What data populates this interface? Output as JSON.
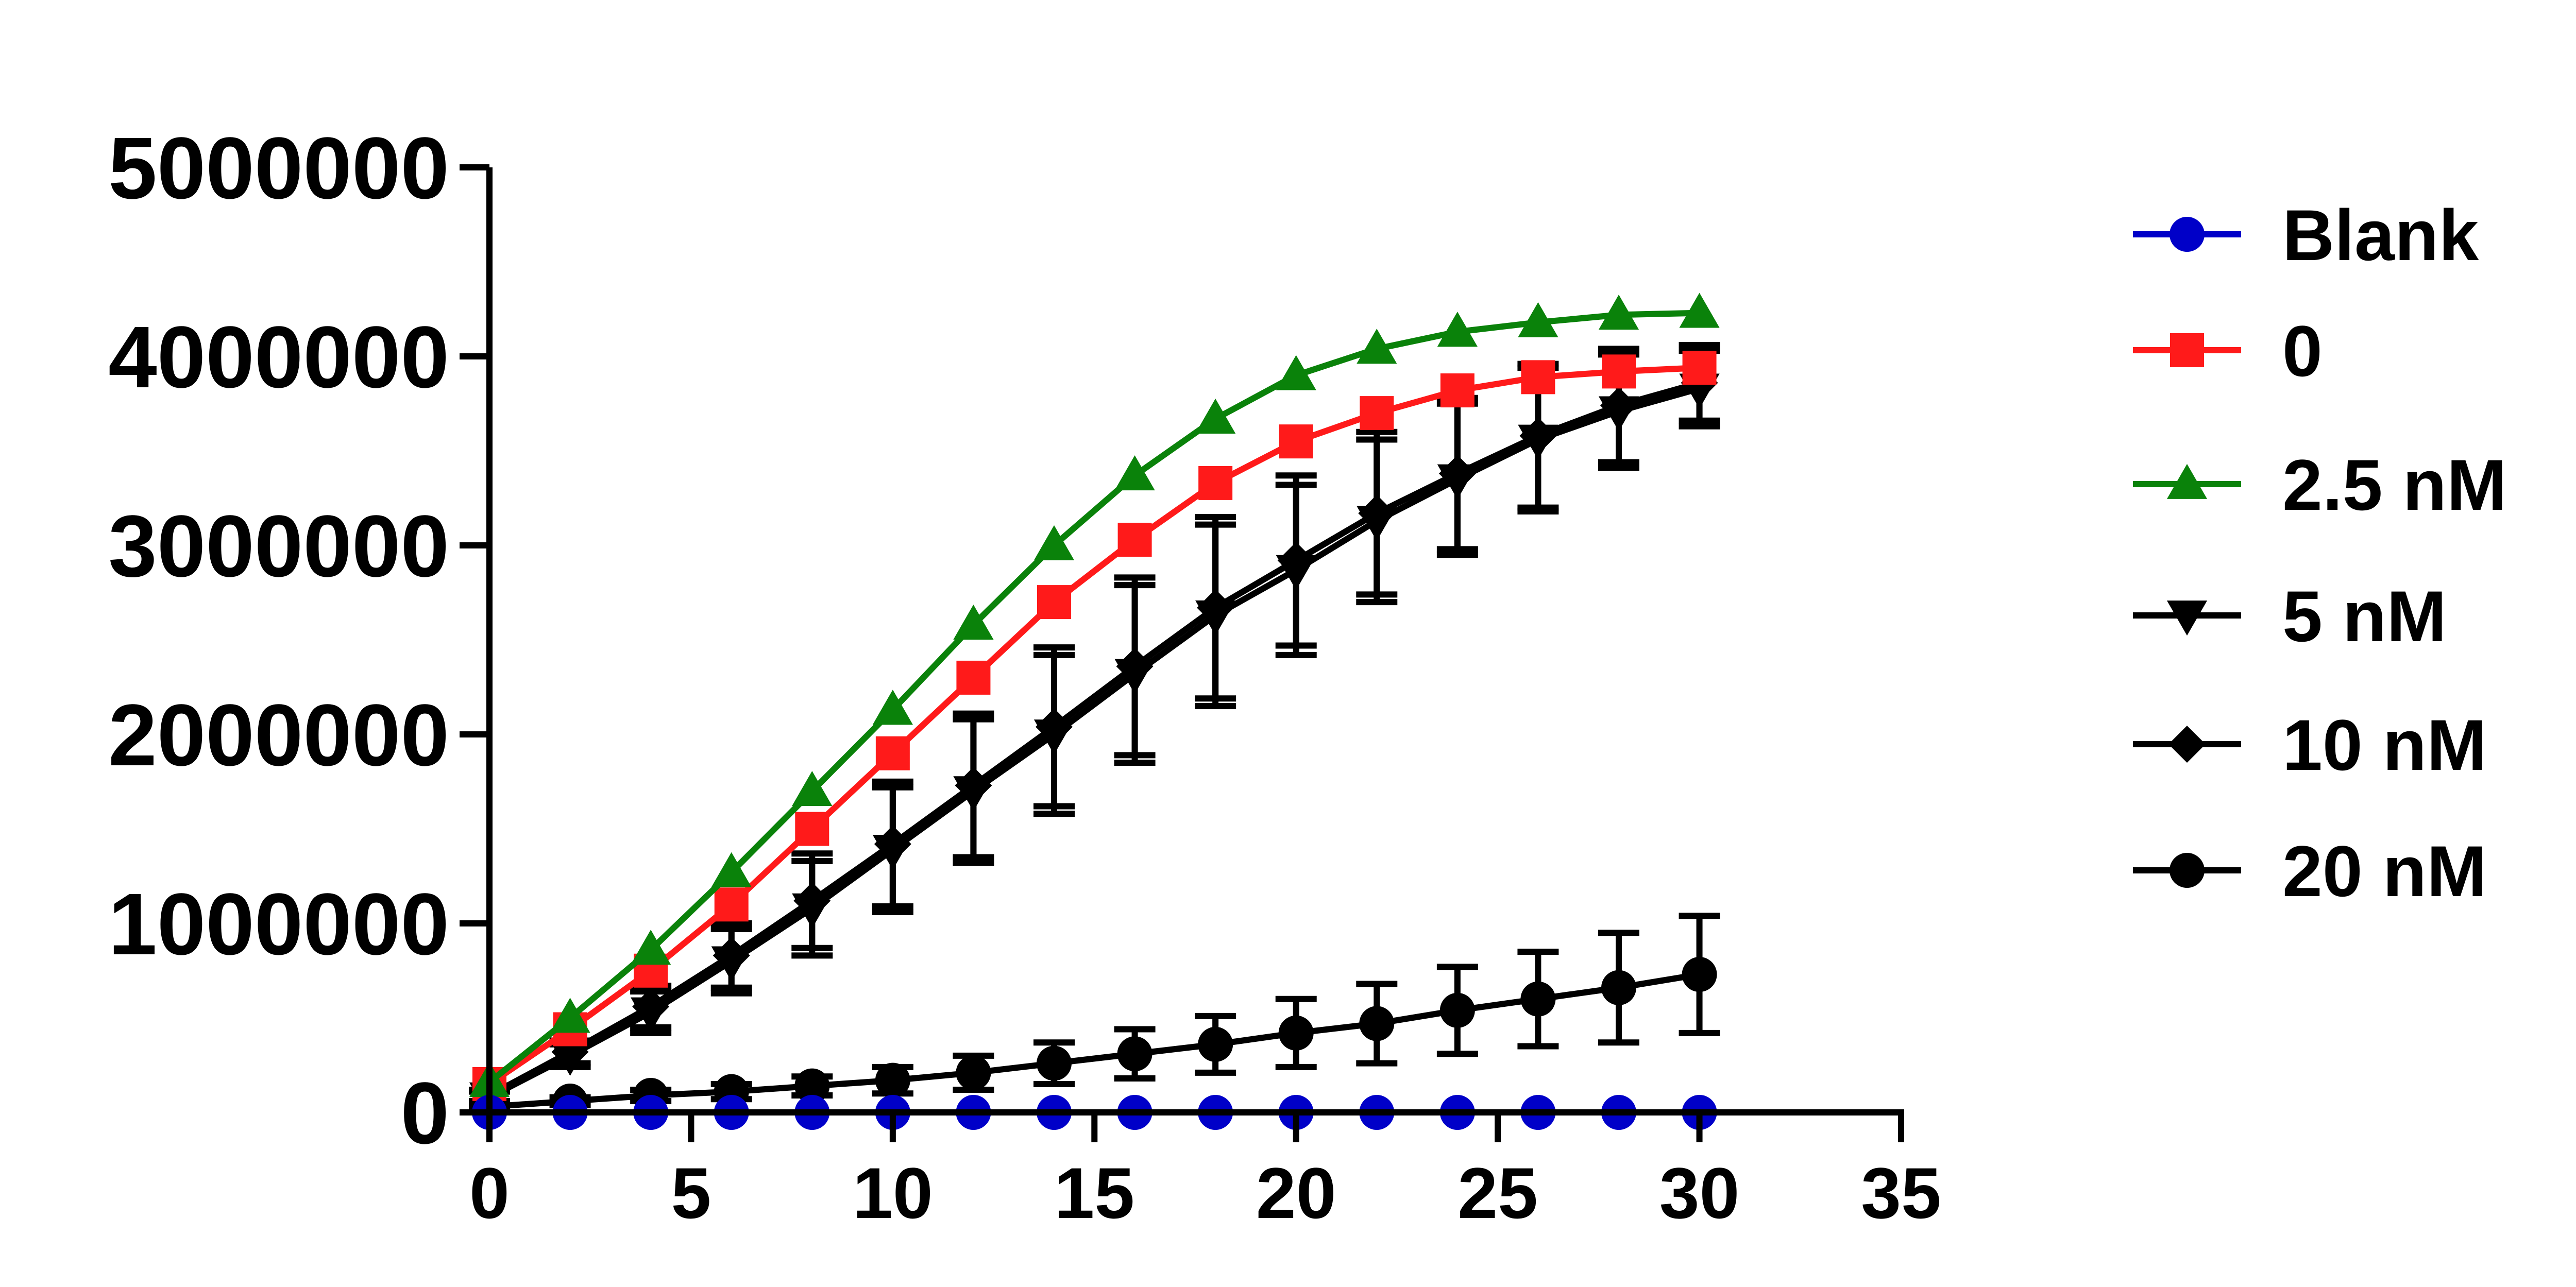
{
  "chart_data": {
    "type": "line",
    "title": "",
    "xlabel": "",
    "ylabel": "",
    "xlim": [
      0,
      35
    ],
    "ylim": [
      0,
      5000000
    ],
    "xticks": [
      0,
      5,
      10,
      15,
      20,
      25,
      30,
      35
    ],
    "yticks": [
      0,
      1000000,
      2000000,
      3000000,
      4000000,
      5000000
    ],
    "xtick_labels": [
      "0",
      "5",
      "10",
      "15",
      "20",
      "25",
      "30",
      "35"
    ],
    "ytick_labels": [
      "0",
      "1000000",
      "2000000",
      "3000000",
      "4000000",
      "5000000"
    ],
    "grid": false,
    "legend_position": "right",
    "x": [
      0,
      2,
      4,
      6,
      8,
      10,
      12,
      14,
      16,
      18,
      20,
      22,
      24,
      26,
      28,
      30
    ],
    "series": [
      {
        "name": "Blank",
        "color": "#0000c8",
        "marker": "circle",
        "values": [
          0,
          0,
          0,
          0,
          0,
          0,
          0,
          0,
          0,
          0,
          0,
          0,
          0,
          0,
          0,
          0
        ]
      },
      {
        "name": "0",
        "color": "#ff1a1a",
        "marker": "square",
        "values": [
          150000,
          440000,
          750000,
          1100000,
          1500000,
          1900000,
          2300000,
          2700000,
          3030000,
          3330000,
          3550000,
          3700000,
          3820000,
          3890000,
          3920000,
          3940000
        ]
      },
      {
        "name": "2.5 nM",
        "color": "#0a820a",
        "marker": "triangle-up",
        "values": [
          160000,
          500000,
          860000,
          1270000,
          1700000,
          2130000,
          2580000,
          3000000,
          3370000,
          3670000,
          3900000,
          4040000,
          4130000,
          4180000,
          4220000,
          4230000
        ]
      },
      {
        "name": "5 nM",
        "color": "#000000",
        "marker": "triangle-down",
        "values": [
          80000,
          300000,
          530000,
          800000,
          1080000,
          1390000,
          1700000,
          2000000,
          2320000,
          2630000,
          2870000,
          3130000,
          3350000,
          3560000,
          3710000,
          3830000
        ],
        "errors": [
          30000,
          60000,
          110000,
          170000,
          250000,
          330000,
          380000,
          420000,
          470000,
          480000,
          450000,
          430000,
          400000,
          380000,
          300000,
          200000
        ]
      },
      {
        "name": "10 nM",
        "color": "#000000",
        "marker": "diamond",
        "values": [
          90000,
          320000,
          560000,
          830000,
          1120000,
          1420000,
          1730000,
          2040000,
          2360000,
          2670000,
          2920000,
          3170000,
          3380000,
          3580000,
          3740000,
          3860000
        ],
        "errors": [
          30000,
          60000,
          110000,
          170000,
          250000,
          330000,
          380000,
          420000,
          470000,
          480000,
          450000,
          430000,
          400000,
          380000,
          300000,
          200000
        ]
      },
      {
        "name": "20 nM",
        "color": "#000000",
        "marker": "circle",
        "values": [
          30000,
          60000,
          90000,
          110000,
          140000,
          170000,
          210000,
          260000,
          310000,
          360000,
          420000,
          470000,
          540000,
          600000,
          660000,
          730000
        ],
        "errors": [
          10000,
          20000,
          30000,
          40000,
          50000,
          70000,
          90000,
          110000,
          130000,
          150000,
          180000,
          210000,
          230000,
          250000,
          290000,
          310000
        ]
      }
    ]
  }
}
